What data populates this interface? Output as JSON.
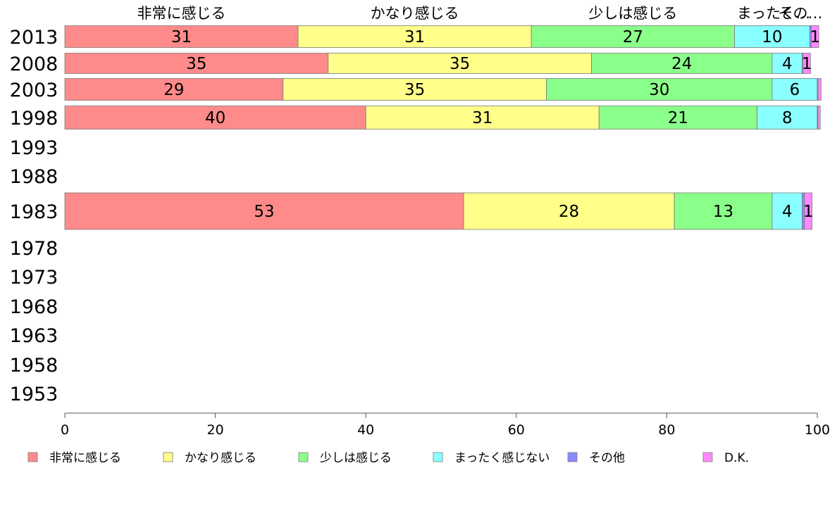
{
  "chart_data": {
    "type": "bar",
    "orientation": "horizontal",
    "stacked": true,
    "categories": [
      "2013",
      "2008",
      "2003",
      "1998",
      "1993",
      "1988",
      "1983",
      "1978",
      "1973",
      "1968",
      "1963",
      "1958",
      "1953"
    ],
    "series": [
      {
        "name": "非常に感じる",
        "color": "#ff8a8a",
        "values": [
          31,
          35,
          29,
          40,
          null,
          null,
          53,
          null,
          null,
          null,
          null,
          null,
          null
        ]
      },
      {
        "name": "かなり感じる",
        "color": "#ffff8a",
        "values": [
          31,
          35,
          35,
          31,
          null,
          null,
          28,
          null,
          null,
          null,
          null,
          null,
          null
        ]
      },
      {
        "name": "少しは感じる",
        "color": "#8aff8a",
        "values": [
          27,
          24,
          30,
          21,
          null,
          null,
          13,
          null,
          null,
          null,
          null,
          null,
          null
        ]
      },
      {
        "name": "まったく感じない",
        "color": "#8affff",
        "values": [
          10,
          4,
          6,
          8,
          null,
          null,
          4,
          null,
          null,
          null,
          null,
          null,
          null
        ]
      },
      {
        "name": "その他",
        "color": "#8a8aff",
        "values": [
          0.2,
          0.1,
          0.1,
          0.1,
          null,
          null,
          0.3,
          null,
          null,
          null,
          null,
          null,
          null
        ]
      },
      {
        "name": "D.K.",
        "color": "#ff8aff",
        "values": [
          1,
          1,
          0.4,
          0.3,
          null,
          null,
          1,
          null,
          null,
          null,
          null,
          null,
          null
        ]
      }
    ],
    "data_labels": [
      [
        "31",
        "31",
        "27",
        "10",
        "",
        "1"
      ],
      [
        "35",
        "35",
        "24",
        "4",
        "",
        "1"
      ],
      [
        "29",
        "35",
        "30",
        "6",
        "",
        ""
      ],
      [
        "40",
        "31",
        "21",
        "8",
        "",
        ""
      ],
      [
        "",
        "",
        "",
        "",
        "",
        ""
      ],
      [
        "",
        "",
        "",
        "",
        "",
        ""
      ],
      [
        "53",
        "28",
        "13",
        "4",
        "",
        "1"
      ],
      [
        "",
        "",
        "",
        "",
        "",
        ""
      ],
      [
        "",
        "",
        "",
        "",
        "",
        ""
      ],
      [
        "",
        "",
        "",
        "",
        "",
        ""
      ],
      [
        "",
        "",
        "",
        "",
        "",
        ""
      ],
      [
        "",
        "",
        "",
        "",
        "",
        ""
      ],
      [
        "",
        "",
        "",
        "",
        "",
        ""
      ]
    ],
    "top_labels": [
      "非常に感じる",
      "かなり感じる",
      "少しは感じる",
      "まったく…",
      "その…",
      ""
    ],
    "xlim": [
      0,
      100
    ],
    "xticks": [
      "0",
      "20",
      "40",
      "60",
      "80",
      "100"
    ],
    "grid": false,
    "legend_position": "bottom"
  }
}
